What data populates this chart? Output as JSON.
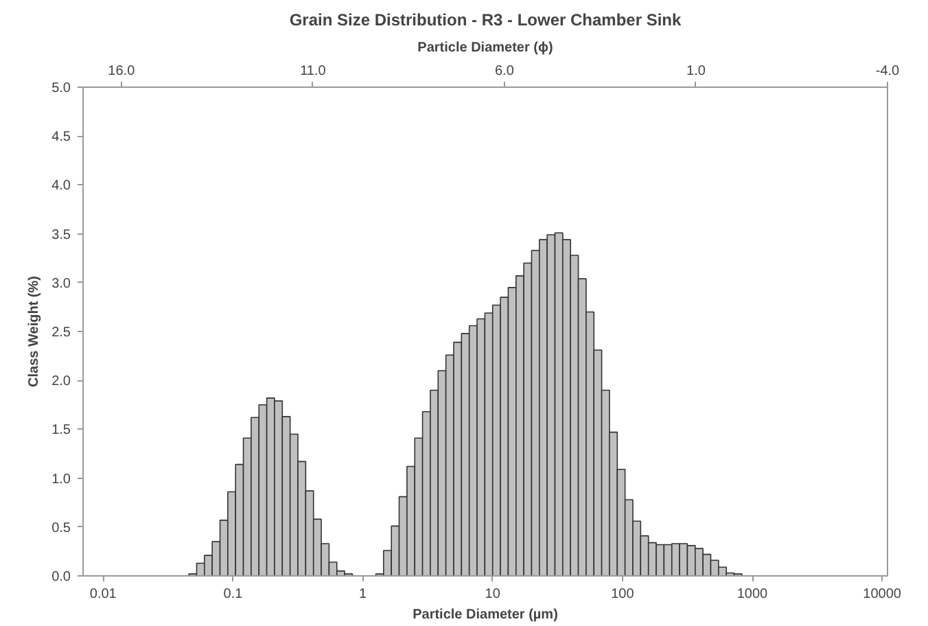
{
  "chart_data": {
    "type": "histogram",
    "title": "Grain Size Distribution - R3 - Lower Chamber Sink",
    "xlabel": "Particle Diameter (µm)",
    "x2label": "Particle Diameter (ϕ)",
    "ylabel": "Class Weight (%)",
    "log": "x",
    "grid": false,
    "color": "#c0c0c0",
    "bins": [
      0.04571,
      0.05248,
      0.06026,
      0.06918,
      0.07943,
      0.0912,
      0.1047,
      0.1202,
      0.138,
      0.1585,
      0.182,
      0.2089,
      0.2399,
      0.2754,
      0.3162,
      0.3631,
      0.4169,
      0.4786,
      0.5495,
      0.631,
      0.7244,
      0.8318,
      0.955,
      1.096,
      1.259,
      1.445,
      1.66,
      1.905,
      2.188,
      2.512,
      2.884,
      3.311,
      3.802,
      4.365,
      5.012,
      5.754,
      6.607,
      7.586,
      8.71,
      10.0,
      11.48,
      13.18,
      15.14,
      17.38,
      19.95,
      22.91,
      26.3,
      30.2,
      34.67,
      39.81,
      45.71,
      52.48,
      60.26,
      69.18,
      79.43,
      91.2,
      104.7,
      120.2,
      138.0,
      158.5,
      182.0,
      208.9,
      239.9,
      275.4,
      316.2,
      363.1,
      416.9,
      478.6,
      549.5,
      631.0,
      724.4,
      831.8
    ],
    "values": [
      0.02,
      0.13,
      0.21,
      0.35,
      0.57,
      0.86,
      1.14,
      1.41,
      1.62,
      1.75,
      1.82,
      1.79,
      1.63,
      1.45,
      1.17,
      0.87,
      0.58,
      0.33,
      0.14,
      0.05,
      0.02,
      0,
      0,
      0,
      0.02,
      0.26,
      0.51,
      0.81,
      1.12,
      1.41,
      1.68,
      1.9,
      2.1,
      2.26,
      2.39,
      2.48,
      2.56,
      2.63,
      2.69,
      2.77,
      2.85,
      2.95,
      3.07,
      3.2,
      3.33,
      3.44,
      3.49,
      3.51,
      3.44,
      3.28,
      3.04,
      2.7,
      2.31,
      1.9,
      1.47,
      1.09,
      0.78,
      0.56,
      0.41,
      0.34,
      0.32,
      0.32,
      0.33,
      0.33,
      0.31,
      0.28,
      0.22,
      0.16,
      0.09,
      0.03,
      0.02
    ],
    "xlim": [
      0.007,
      11000
    ],
    "xticks": [
      {
        "value": 0.01,
        "label": "0.01"
      },
      {
        "value": 0.1,
        "label": "0.1"
      },
      1,
      10,
      100,
      1000,
      10000
    ],
    "x2lim": [
      17.0,
      -4.0
    ],
    "x2ticks": [
      {
        "value": 16,
        "label": "16.0"
      },
      {
        "value": 11,
        "label": "11.0"
      },
      {
        "value": 6,
        "label": "6.0"
      },
      {
        "value": 1,
        "label": "1.0"
      },
      {
        "value": -4,
        "label": "-4.0"
      }
    ],
    "ylim": [
      0,
      5
    ],
    "yticks": [
      {
        "value": 0,
        "label": "0.0"
      },
      0.5,
      {
        "value": 1,
        "label": "1.0"
      },
      1.5,
      {
        "value": 2,
        "label": "2.0"
      },
      2.5,
      {
        "value": 3,
        "label": "3.0"
      },
      3.5,
      {
        "value": 4,
        "label": "4.0"
      },
      4.5,
      {
        "value": 5,
        "label": "5.0"
      }
    ]
  }
}
